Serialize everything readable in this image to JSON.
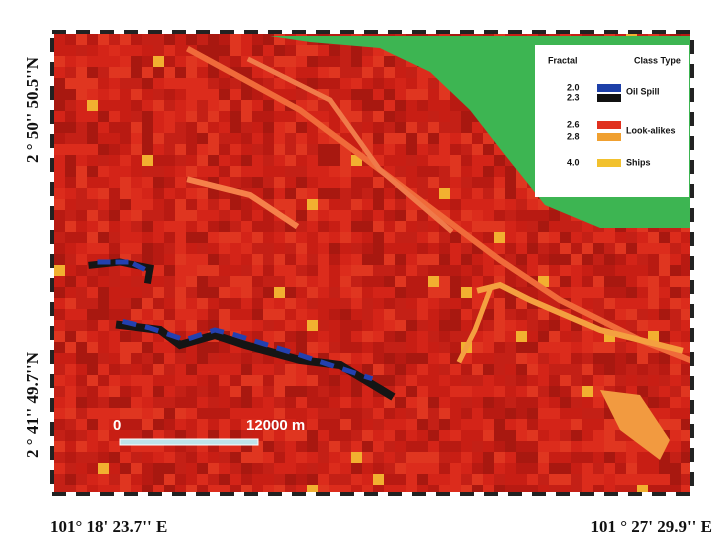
{
  "axes": {
    "lat_top": "2 ° 50'' 50.5''N",
    "lat_bottom": "2 ° 41'' 49.7''N",
    "lon_left": "101° 18' 23.7'' E",
    "lon_right": "101 ° 27' 29.9'' E"
  },
  "legend": {
    "fractal_header": "Fractal",
    "class_header": "Class Type",
    "classes": [
      {
        "fractal": [
          "2.0",
          "2.3"
        ],
        "label": "Oil Spill",
        "colors": [
          "#1d3fa8",
          "#111111"
        ]
      },
      {
        "fractal": [
          "2.6",
          "2.8"
        ],
        "label": "Look-alikes",
        "colors": [
          "#e0301e",
          "#f0a030"
        ]
      },
      {
        "fractal": [
          "4.0"
        ],
        "label": "Ships",
        "colors": [
          "#f2c12e"
        ]
      }
    ]
  },
  "scale_bar": {
    "start": "0",
    "end": "12000 m"
  }
}
